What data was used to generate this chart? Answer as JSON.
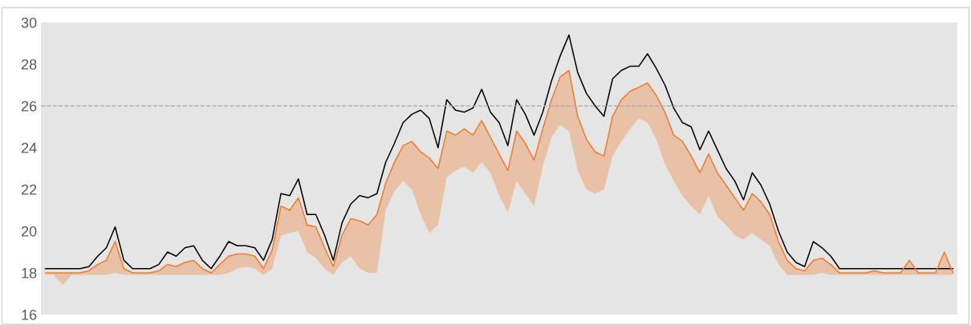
{
  "chart_data": {
    "type": "line",
    "categories": [
      null,
      null,
      null,
      null,
      null,
      null,
      null,
      null,
      null,
      null,
      null,
      null,
      null,
      null,
      null,
      null,
      null,
      null,
      null,
      null,
      null,
      null,
      null,
      null,
      null,
      null,
      null,
      null,
      null,
      null,
      null,
      null,
      null,
      null,
      null,
      null,
      null,
      null,
      null,
      null,
      null,
      null,
      null,
      null,
      null,
      null,
      null,
      null,
      null,
      null,
      null,
      null,
      null,
      null,
      null,
      null,
      null,
      null,
      null,
      null,
      null,
      null,
      null,
      null,
      null,
      null,
      null,
      null,
      null,
      null,
      null,
      null,
      null,
      null,
      null,
      null,
      null,
      null,
      null,
      null,
      null,
      null,
      null,
      null,
      null,
      null,
      null,
      null,
      null,
      null,
      null,
      null,
      null,
      null,
      null,
      null,
      null,
      null,
      null,
      null,
      null,
      null,
      null,
      null,
      null
    ],
    "series": [
      {
        "color": "#000000",
        "values": [
          18.2,
          18.2,
          18.2,
          18.2,
          18.2,
          18.3,
          18.8,
          19.2,
          20.2,
          18.6,
          18.2,
          18.2,
          18.2,
          18.4,
          19.0,
          18.8,
          19.2,
          19.3,
          18.6,
          18.2,
          18.8,
          19.5,
          19.3,
          19.3,
          19.2,
          18.6,
          19.6,
          21.8,
          21.7,
          22.5,
          20.8,
          20.8,
          19.8,
          18.6,
          20.4,
          21.3,
          21.7,
          21.6,
          21.8,
          23.3,
          24.2,
          25.2,
          25.6,
          25.8,
          25.4,
          24.0,
          26.3,
          25.8,
          25.7,
          25.9,
          26.8,
          25.7,
          25.2,
          24.1,
          26.3,
          25.6,
          24.6,
          25.7,
          27.2,
          28.4,
          29.4,
          27.6,
          26.6,
          26.0,
          25.5,
          27.3,
          27.7,
          27.9,
          27.9,
          28.5,
          27.8,
          27.0,
          25.9,
          25.2,
          25.0,
          23.9,
          24.8,
          23.9,
          23.0,
          22.4,
          21.5,
          22.8,
          22.2,
          21.3,
          20.0,
          19.0,
          18.5,
          18.3,
          19.5,
          19.2,
          18.8,
          18.2,
          18.2,
          18.2,
          18.2,
          18.2,
          18.2,
          18.2,
          18.2,
          18.2,
          18.2,
          18.2,
          18.2,
          18.2,
          18.2
        ]
      },
      {
        "color": "#ed7d31",
        "values": [
          18.0,
          18.0,
          18.0,
          18.0,
          18.0,
          18.1,
          18.4,
          18.6,
          19.5,
          18.2,
          18.0,
          18.0,
          18.0,
          18.1,
          18.4,
          18.3,
          18.5,
          18.6,
          18.2,
          18.0,
          18.4,
          18.8,
          18.9,
          18.9,
          18.8,
          18.2,
          19.1,
          21.2,
          21.0,
          21.6,
          20.3,
          20.2,
          19.2,
          18.3,
          19.8,
          20.6,
          20.5,
          20.3,
          20.8,
          22.3,
          23.3,
          24.1,
          24.3,
          23.8,
          23.5,
          23.0,
          24.8,
          24.6,
          24.9,
          24.6,
          25.3,
          24.5,
          23.7,
          22.9,
          24.8,
          24.2,
          23.4,
          24.9,
          26.3,
          27.4,
          27.7,
          25.5,
          24.4,
          23.8,
          23.6,
          25.5,
          26.3,
          26.7,
          26.9,
          27.1,
          26.5,
          25.7,
          24.6,
          24.3,
          23.6,
          22.8,
          23.7,
          22.8,
          22.2,
          21.6,
          21.0,
          21.8,
          21.4,
          20.8,
          19.5,
          18.6,
          18.2,
          18.1,
          18.6,
          18.7,
          18.4,
          18.0,
          18.0,
          18.0,
          18.0,
          18.1,
          18.0,
          18.0,
          18.0,
          18.6,
          18.0,
          18.0,
          18.0,
          19.0,
          18.0
        ],
        "upper": [
          18.0,
          18.0,
          18.0,
          18.0,
          18.0,
          18.1,
          18.4,
          18.6,
          19.5,
          18.2,
          18.0,
          18.0,
          18.0,
          18.1,
          18.4,
          18.3,
          18.5,
          18.6,
          18.2,
          18.0,
          18.4,
          18.8,
          18.9,
          18.9,
          18.8,
          18.2,
          19.1,
          21.2,
          21.0,
          21.6,
          20.3,
          20.2,
          19.2,
          18.3,
          19.8,
          20.6,
          20.5,
          20.3,
          20.8,
          22.3,
          23.3,
          24.1,
          24.3,
          23.8,
          23.5,
          23.0,
          24.8,
          24.6,
          24.9,
          24.6,
          25.3,
          24.5,
          23.7,
          22.9,
          24.8,
          24.2,
          23.4,
          24.9,
          26.3,
          27.4,
          27.7,
          25.5,
          24.4,
          23.8,
          23.6,
          25.5,
          26.3,
          26.7,
          26.9,
          27.1,
          26.5,
          25.7,
          24.6,
          24.3,
          23.6,
          22.8,
          23.7,
          22.8,
          22.2,
          21.6,
          21.0,
          21.8,
          21.4,
          20.8,
          19.5,
          18.6,
          18.2,
          18.1,
          18.6,
          18.7,
          18.4,
          18.0,
          18.0,
          18.0,
          18.0,
          18.1,
          18.0,
          18.0,
          18.0,
          18.6,
          18.0,
          18.0,
          18.0,
          19.0,
          18.0
        ],
        "lower": [
          17.9,
          17.9,
          17.4,
          17.9,
          17.9,
          17.9,
          17.9,
          17.9,
          18.0,
          17.9,
          17.9,
          17.9,
          17.9,
          17.9,
          17.9,
          17.9,
          17.9,
          17.9,
          17.9,
          17.9,
          17.9,
          18.0,
          18.2,
          18.3,
          18.2,
          17.9,
          18.2,
          19.8,
          19.9,
          20.0,
          19.0,
          18.7,
          18.2,
          17.9,
          18.5,
          18.8,
          18.2,
          18.0,
          18.0,
          21.0,
          21.9,
          22.4,
          22.0,
          20.8,
          19.9,
          20.3,
          22.6,
          22.9,
          23.1,
          22.8,
          23.3,
          22.8,
          21.7,
          20.9,
          22.4,
          21.8,
          21.2,
          23.1,
          24.5,
          25.1,
          24.8,
          22.9,
          22.0,
          21.8,
          22.0,
          23.6,
          24.3,
          24.9,
          25.4,
          25.2,
          24.4,
          23.2,
          22.4,
          21.7,
          21.2,
          20.8,
          21.7,
          20.7,
          20.3,
          19.8,
          19.6,
          19.9,
          19.6,
          19.3,
          18.4,
          17.9,
          17.9,
          17.9,
          17.9,
          18.0,
          17.9,
          17.9,
          17.9,
          17.9,
          17.9,
          17.9,
          17.9,
          17.9,
          17.9,
          17.9,
          17.9,
          17.9,
          17.9,
          17.9,
          17.9
        ]
      }
    ],
    "ylim": [
      16,
      30
    ],
    "yticks": [
      16,
      18,
      20,
      22,
      24,
      26,
      28,
      30
    ],
    "ref_lines": [
      {
        "axis": "y",
        "value": 26,
        "color": "#b0b0b0",
        "line_style": "dashed"
      }
    ],
    "grid": false,
    "marker": "none",
    "line_style": "solid",
    "tick_labels": "y"
  }
}
